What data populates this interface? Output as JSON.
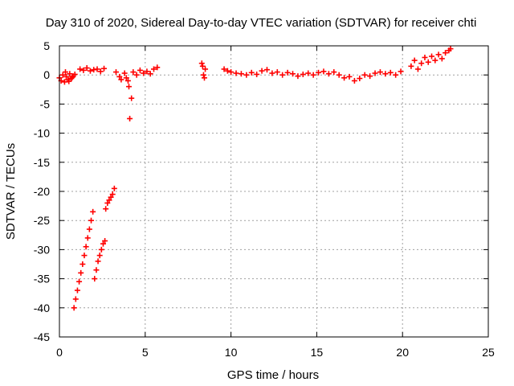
{
  "chart_data": {
    "type": "scatter",
    "title": "Day 310 of 2020, Sidereal Day-to-day VTEC variation (SDTVAR) for receiver chti",
    "xlabel": "GPS time / hours",
    "ylabel": "SDTVAR / TECUs",
    "xlim": [
      0,
      25
    ],
    "ylim": [
      -45,
      5
    ],
    "xticks": [
      0,
      5,
      10,
      15,
      20,
      25
    ],
    "yticks": [
      5,
      0,
      -5,
      -10,
      -15,
      -20,
      -25,
      -30,
      -35,
      -40,
      -45
    ],
    "grid": true,
    "marker": "plus",
    "series": [
      {
        "name": "SDTVAR",
        "color": "#ff0000",
        "x": [
          0.0,
          0.1,
          0.2,
          0.3,
          0.4,
          0.5,
          0.6,
          0.7,
          0.8,
          0.9,
          0.35,
          0.55,
          0.75,
          0.85,
          0.95,
          1.05,
          1.15,
          1.25,
          1.35,
          1.45,
          1.55,
          1.65,
          1.75,
          1.85,
          1.95,
          1.2,
          1.4,
          1.6,
          1.8,
          2.0,
          2.2,
          2.4,
          2.6,
          2.05,
          2.15,
          2.25,
          2.35,
          2.45,
          2.55,
          2.65,
          2.7,
          2.8,
          2.9,
          3.0,
          3.1,
          3.2,
          3.3,
          3.5,
          3.6,
          3.8,
          3.9,
          4.05,
          4.2,
          4.1,
          4.0,
          4.3,
          4.5,
          4.7,
          4.9,
          5.1,
          5.3,
          5.5,
          5.7,
          8.3,
          8.35,
          8.4,
          8.45,
          8.5,
          9.6,
          9.8,
          10.0,
          10.3,
          10.6,
          10.9,
          11.2,
          11.5,
          11.8,
          12.1,
          12.4,
          12.7,
          13.0,
          13.3,
          13.6,
          13.9,
          14.2,
          14.5,
          14.8,
          15.1,
          15.4,
          15.7,
          16.0,
          16.3,
          16.6,
          16.9,
          17.2,
          17.5,
          17.8,
          18.1,
          18.4,
          18.7,
          19.0,
          19.3,
          19.6,
          19.9,
          20.5,
          20.7,
          20.9,
          21.1,
          21.3,
          21.5,
          21.7,
          21.9,
          22.1,
          22.3,
          22.5,
          22.7,
          22.8
        ],
        "y": [
          -0.5,
          -1.0,
          0.0,
          -1.2,
          -0.3,
          -0.8,
          0.2,
          -0.6,
          -0.2,
          0.1,
          0.5,
          -1.1,
          -0.4,
          -40.0,
          -38.5,
          -37.0,
          -35.5,
          -34.0,
          -32.5,
          -31.0,
          -29.5,
          -28.0,
          -26.5,
          -25.0,
          -23.5,
          1.0,
          0.8,
          1.2,
          0.7,
          0.9,
          1.0,
          0.6,
          1.1,
          -35.0,
          -33.5,
          -32.0,
          -31.0,
          -30.0,
          -29.0,
          -28.5,
          -23.0,
          -22.0,
          -21.5,
          -21.0,
          -20.5,
          -19.5,
          0.5,
          -0.3,
          -0.8,
          0.3,
          -0.5,
          -2.0,
          -4.0,
          -7.5,
          -1.0,
          0.5,
          0.0,
          0.8,
          0.3,
          0.6,
          0.2,
          1.0,
          1.3,
          2.0,
          1.5,
          0.0,
          -0.5,
          1.0,
          1.0,
          0.7,
          0.5,
          0.3,
          0.2,
          0.0,
          0.4,
          0.1,
          0.7,
          0.9,
          0.3,
          0.5,
          0.0,
          0.4,
          0.2,
          -0.2,
          0.1,
          0.3,
          0.0,
          0.4,
          0.6,
          0.2,
          0.5,
          0.0,
          -0.5,
          -0.3,
          -1.0,
          -0.6,
          0.0,
          -0.2,
          0.3,
          0.5,
          0.2,
          0.4,
          0.0,
          0.6,
          1.5,
          2.5,
          1.0,
          2.0,
          3.0,
          2.2,
          3.2,
          2.5,
          3.5,
          2.8,
          3.8,
          4.2,
          4.5
        ]
      }
    ]
  }
}
